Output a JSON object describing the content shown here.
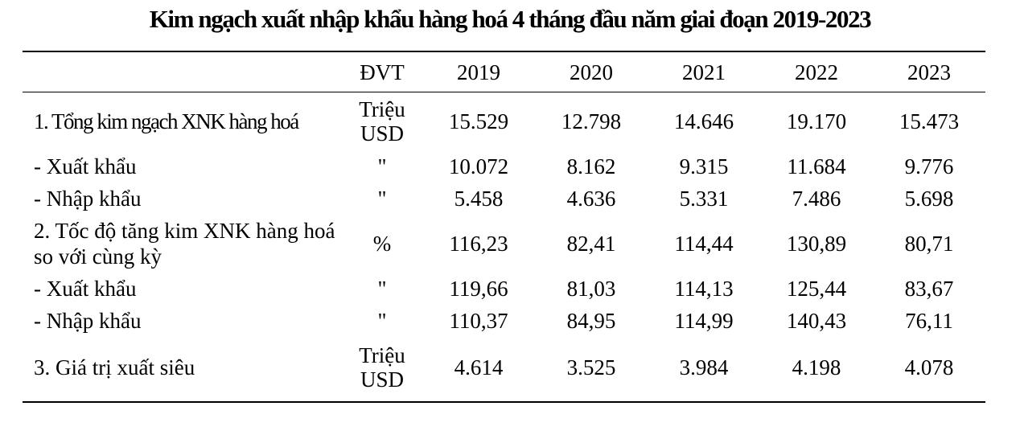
{
  "title": "Kim ngạch xuất nhập khẩu hàng hoá 4 tháng đầu năm giai đoạn 2019-2023",
  "headers": {
    "label": "",
    "unit": "ĐVT",
    "years": [
      "2019",
      "2020",
      "2021",
      "2022",
      "2023"
    ]
  },
  "rows": [
    {
      "label": "1. Tổng kim ngạch XNK hàng hoá",
      "unit_line1": "Triệu",
      "unit_line2": "USD",
      "values": [
        "15.529",
        "12.798",
        "14.646",
        "19.170",
        "15.473"
      ]
    },
    {
      "label": "- Xuất khẩu",
      "unit": "\"",
      "values": [
        "10.072",
        "8.162",
        "9.315",
        "11.684",
        "9.776"
      ]
    },
    {
      "label": "- Nhập khẩu",
      "unit": "\"",
      "values": [
        "5.458",
        "4.636",
        "5.331",
        "7.486",
        "5.698"
      ]
    },
    {
      "label": "2. Tốc độ tăng kim XNK hàng hoá so với cùng kỳ",
      "unit": "%",
      "values": [
        "116,23",
        "82,41",
        "114,44",
        "130,89",
        "80,71"
      ]
    },
    {
      "label": "- Xuất khẩu",
      "unit": "\"",
      "values": [
        "119,66",
        "81,03",
        "114,13",
        "125,44",
        "83,67"
      ]
    },
    {
      "label": "- Nhập khẩu",
      "unit": "\"",
      "values": [
        "110,37",
        "84,95",
        "114,99",
        "140,43",
        "76,11"
      ]
    },
    {
      "label": "3. Giá trị xuất siêu",
      "unit_line1": "Triệu",
      "unit_line2": "USD",
      "values": [
        "4.614",
        "3.525",
        "3.984",
        "4.198",
        "4.078"
      ]
    }
  ]
}
